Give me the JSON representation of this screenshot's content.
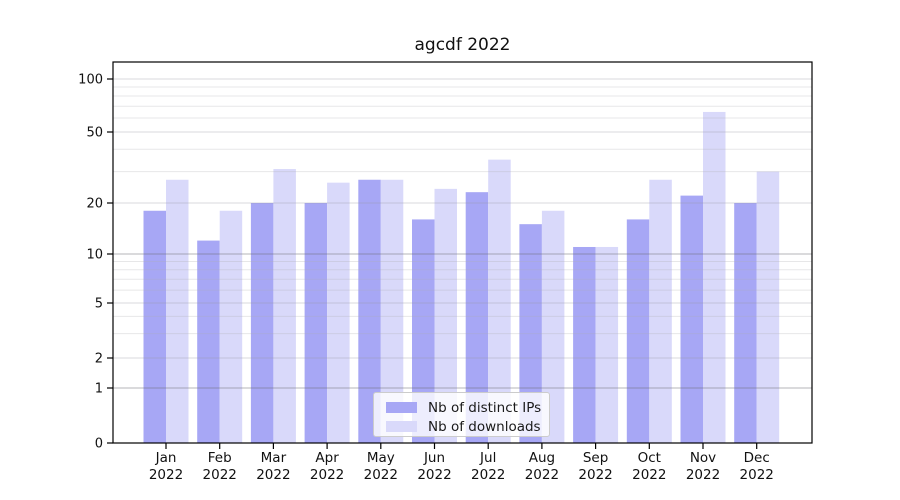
{
  "chart_data": {
    "type": "bar",
    "title": "agcdf 2022",
    "months": [
      "Jan",
      "Feb",
      "Mar",
      "Apr",
      "May",
      "Jun",
      "Jul",
      "Aug",
      "Sep",
      "Oct",
      "Nov",
      "Dec"
    ],
    "year": "2022",
    "categories": [
      "Jan 2022",
      "Feb 2022",
      "Mar 2022",
      "Apr 2022",
      "May 2022",
      "Jun 2022",
      "Jul 2022",
      "Aug 2022",
      "Sep 2022",
      "Oct 2022",
      "Nov 2022",
      "Dec 2022"
    ],
    "series": [
      {
        "name": "Nb of distinct IPs",
        "color": "#a7a7f5",
        "values": [
          18,
          12,
          20,
          20,
          27,
          16,
          23,
          15,
          11,
          16,
          22,
          20
        ]
      },
      {
        "name": "Nb of downloads",
        "color": "#d9d9fa",
        "values": [
          27,
          18,
          31,
          26,
          27,
          24,
          35,
          18,
          11,
          27,
          65,
          30
        ]
      }
    ],
    "yticks": [
      0,
      1,
      2,
      5,
      10,
      20,
      50,
      100
    ],
    "ylim": [
      0,
      100
    ],
    "y_scale": "log above 1, linear 0-1",
    "grid": true,
    "legend": {
      "position": "inside-bottom-center",
      "labels": [
        "Nb of distinct IPs",
        "Nb of downloads"
      ]
    },
    "colors": {
      "axis": "#000000",
      "tick_text": "#111111",
      "grid_major": "#c3c3c6",
      "grid_minor": "#ebebee"
    }
  }
}
